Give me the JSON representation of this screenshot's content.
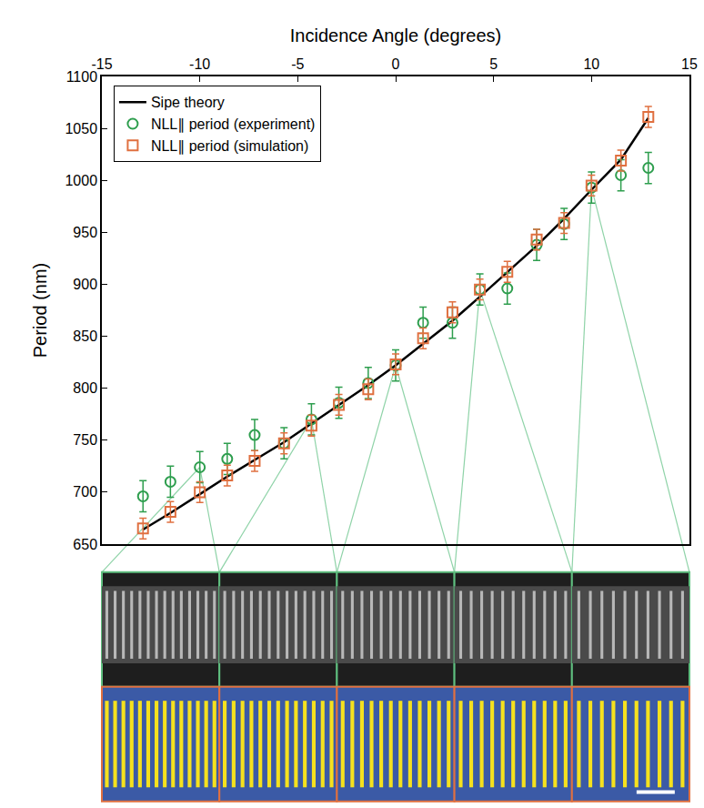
{
  "chart_data": {
    "type": "scatter",
    "xlabel": "Incidence Angle (degrees)",
    "ylabel": "Period (nm)",
    "xlim": [
      -15,
      15
    ],
    "xticks": [
      -15,
      -10,
      -5,
      0,
      5,
      10,
      15
    ],
    "ylim": [
      650,
      1100
    ],
    "yticks": [
      650,
      700,
      750,
      800,
      850,
      900,
      950,
      1000,
      1050,
      1100
    ],
    "grid": false,
    "legend": "upper left",
    "series": [
      {
        "name": "Sipe theory",
        "type": "line",
        "color": "#000000",
        "line_style": "solid",
        "x": [
          -12.9,
          -11.5,
          -10.0,
          -8.6,
          -7.2,
          -5.7,
          -4.3,
          -2.9,
          -1.4,
          0,
          1.4,
          2.9,
          4.3,
          5.7,
          7.2,
          8.6,
          10.0,
          11.5,
          12.9
        ],
        "values": [
          664,
          680,
          698,
          715,
          731,
          748,
          766,
          784,
          803,
          822,
          843,
          865,
          888,
          912,
          937,
          963,
          991,
          1020,
          1060
        ]
      },
      {
        "name": "NLL∥ period (experiment)",
        "type": "scatter",
        "color": "#2e9e4e",
        "marker": "circle-open",
        "x": [
          -12.9,
          -11.5,
          -10.0,
          -8.6,
          -7.2,
          -5.7,
          -4.3,
          -2.9,
          -1.4,
          0,
          1.4,
          2.9,
          4.3,
          5.7,
          7.2,
          8.6,
          10.0,
          11.5,
          12.9
        ],
        "values": [
          696,
          710,
          724,
          732,
          755,
          747,
          770,
          786,
          805,
          822,
          863,
          863,
          895,
          896,
          938,
          958,
          993,
          1005,
          1012
        ],
        "errors": [
          15,
          15,
          15,
          15,
          15,
          15,
          15,
          15,
          15,
          15,
          15,
          15,
          15,
          15,
          15,
          15,
          15,
          15,
          15
        ]
      },
      {
        "name": "NLL∥ period (simulation)",
        "type": "scatter",
        "color": "#e07040",
        "marker": "square-open",
        "x": [
          -12.9,
          -11.5,
          -10.0,
          -8.6,
          -7.2,
          -5.7,
          -4.3,
          -2.9,
          -1.4,
          0,
          1.4,
          2.9,
          4.3,
          5.7,
          7.2,
          8.6,
          10.0,
          11.5,
          12.9
        ],
        "values": [
          665,
          681,
          700,
          716,
          730,
          747,
          764,
          784,
          799,
          823,
          848,
          873,
          895,
          912,
          943,
          959,
          995,
          1019,
          1061
        ],
        "errors": [
          10,
          10,
          10,
          10,
          10,
          10,
          10,
          10,
          10,
          10,
          10,
          10,
          10,
          10,
          10,
          10,
          10,
          10,
          10
        ]
      }
    ],
    "insets": [
      -10.0,
      -4.3,
      0,
      4.3,
      10.0
    ]
  }
}
